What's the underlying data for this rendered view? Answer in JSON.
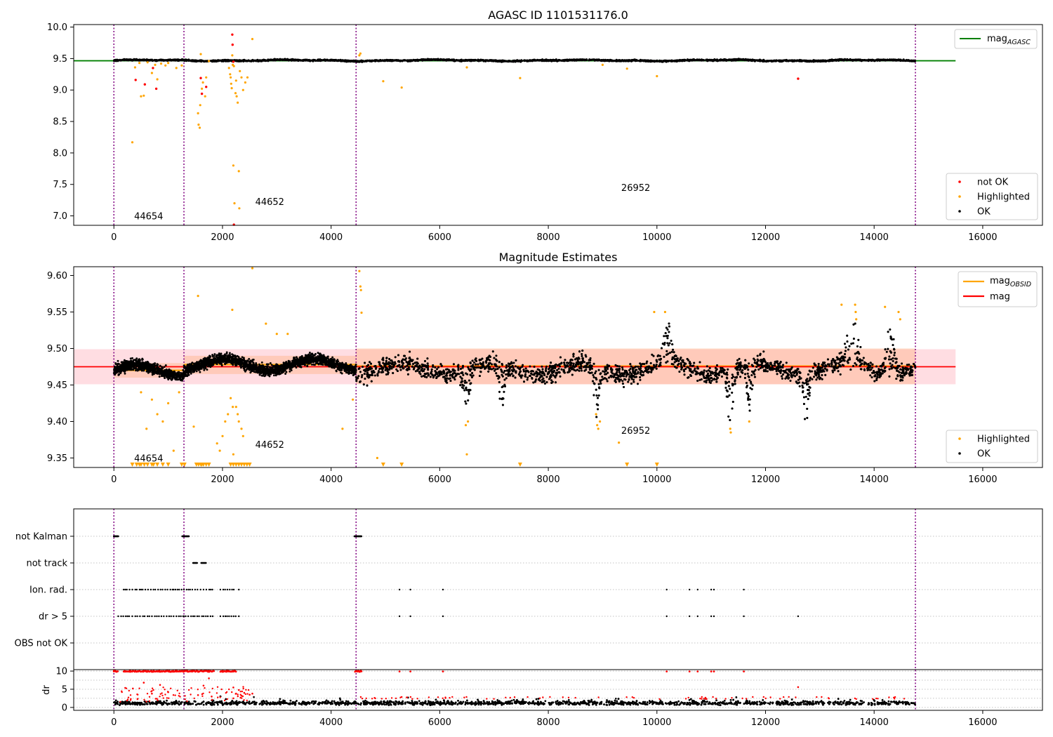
{
  "chart_data": [
    {
      "type": "scatter",
      "title": "AGASC ID 1101531176.0",
      "xlim": [
        -740,
        17100
      ],
      "ylim": [
        6.85,
        10.04
      ],
      "x_ticks": [
        0,
        2000,
        4000,
        6000,
        8000,
        10000,
        12000,
        14000,
        16000
      ],
      "y_ticks": [
        7.0,
        7.5,
        8.0,
        8.5,
        9.0,
        9.5,
        10.0
      ],
      "obsid_boundaries": [
        0,
        1290,
        4460,
        14760
      ],
      "obsid_labels": [
        {
          "text": "44654",
          "x": 640,
          "y": 6.99
        },
        {
          "text": "44652",
          "x": 2870,
          "y": 7.22
        },
        {
          "text": "26952",
          "x": 9610,
          "y": 7.44
        }
      ],
      "reference_line": {
        "name": "mag$_{AGASC}$",
        "label_main": "mag",
        "label_sub": "AGASC",
        "value": 9.465,
        "x_range": [
          -740,
          15500
        ],
        "color": "#008000"
      },
      "legend_lines_position": "upper right",
      "legend_points_position": "lower right",
      "series": [
        {
          "name": "not OK",
          "color": "#ff0000",
          "points": [
            [
              400,
              9.16
            ],
            [
              570,
              9.09
            ],
            [
              720,
              9.35
            ],
            [
              780,
              9.02
            ],
            [
              1600,
              9.19
            ],
            [
              1620,
              8.94
            ],
            [
              1700,
              9.05
            ],
            [
              2180,
              9.88
            ],
            [
              2185,
              9.72
            ],
            [
              2200,
              9.45
            ],
            [
              2210,
              6.86
            ],
            [
              12600,
              9.18
            ]
          ]
        },
        {
          "name": "Highlighted",
          "color": "#ffa500",
          "points": [
            [
              340,
              8.17
            ],
            [
              390,
              9.36
            ],
            [
              470,
              9.43
            ],
            [
              500,
              8.9
            ],
            [
              550,
              8.91
            ],
            [
              620,
              9.44
            ],
            [
              700,
              9.27
            ],
            [
              760,
              9.4
            ],
            [
              800,
              9.17
            ],
            [
              870,
              9.42
            ],
            [
              950,
              9.39
            ],
            [
              1000,
              9.43
            ],
            [
              1150,
              9.35
            ],
            [
              1250,
              9.39
            ],
            [
              1550,
              8.63
            ],
            [
              1560,
              8.45
            ],
            [
              1580,
              8.4
            ],
            [
              1590,
              8.76
            ],
            [
              1600,
              9.57
            ],
            [
              1620,
              9.02
            ],
            [
              1640,
              9.12
            ],
            [
              1680,
              8.9
            ],
            [
              1700,
              9.2
            ],
            [
              1750,
              9.46
            ],
            [
              2120,
              9.35
            ],
            [
              2140,
              9.25
            ],
            [
              2150,
              9.2
            ],
            [
              2160,
              9.1
            ],
            [
              2170,
              9.03
            ],
            [
              2180,
              9.55
            ],
            [
              2190,
              9.4
            ],
            [
              2200,
              7.8
            ],
            [
              2210,
              9.38
            ],
            [
              2220,
              7.2
            ],
            [
              2240,
              8.95
            ],
            [
              2250,
              9.15
            ],
            [
              2260,
              8.9
            ],
            [
              2280,
              8.8
            ],
            [
              2300,
              7.71
            ],
            [
              2310,
              7.12
            ],
            [
              2320,
              9.3
            ],
            [
              2350,
              9.2
            ],
            [
              2380,
              9.0
            ],
            [
              2420,
              9.12
            ],
            [
              2460,
              9.2
            ],
            [
              2550,
              9.81
            ],
            [
              4520,
              9.55
            ],
            [
              4540,
              9.58
            ],
            [
              4960,
              9.14
            ],
            [
              5300,
              9.04
            ],
            [
              6500,
              9.36
            ],
            [
              7480,
              9.19
            ],
            [
              9000,
              9.4
            ],
            [
              9450,
              9.34
            ],
            [
              10000,
              9.22
            ]
          ]
        },
        {
          "name": "OK",
          "color": "#000000",
          "band": {
            "x_segments": [
              [
                0,
                1290
              ],
              [
                1290,
                4460
              ],
              [
                4460,
                14760
              ]
            ],
            "mean": 9.47,
            "spread": 0.02
          },
          "summary": "dense OK points around mag 9.47 for x from 0 to 14760"
        }
      ]
    },
    {
      "type": "scatter",
      "title": "Magnitude Estimates",
      "xlim": [
        -740,
        17100
      ],
      "ylim": [
        9.337,
        9.612
      ],
      "x_ticks": [
        0,
        2000,
        4000,
        6000,
        8000,
        10000,
        12000,
        14000,
        16000
      ],
      "y_ticks": [
        9.35,
        9.4,
        9.45,
        9.5,
        9.55,
        9.6
      ],
      "obsid_boundaries": [
        0,
        1290,
        4460,
        14760
      ],
      "obsid_labels": [
        {
          "text": "44654",
          "x": 640,
          "y": 9.349
        },
        {
          "text": "44652",
          "x": 2870,
          "y": 9.368
        },
        {
          "text": "26952",
          "x": 9610,
          "y": 9.387
        }
      ],
      "mag_line": {
        "name": "mag",
        "value": 9.475,
        "band": [
          9.451,
          9.499
        ],
        "x_range": [
          -740,
          15500
        ],
        "color": "#ff0000",
        "band_color": "#ffdde2"
      },
      "mag_obsid_line": {
        "name": "mag$_{OBSID}$",
        "label_main": "mag",
        "label_sub": "OBSID",
        "color": "#ffa500",
        "segments": [
          {
            "x": [
              0,
              1290
            ],
            "value": 9.47,
            "band": [
              9.46,
              9.48
            ]
          },
          {
            "x": [
              1290,
              4460
            ],
            "value": 9.478,
            "band": [
              9.465,
              9.49
            ]
          },
          {
            "x": [
              4460,
              14760
            ],
            "value": 9.476,
            "band": [
              9.451,
              9.5
            ]
          }
        ]
      },
      "legend_lines_position": "upper right",
      "legend_points_position": "lower right",
      "series": [
        {
          "name": "Highlighted",
          "color": "#ffa500",
          "points": [
            [
              1550,
              9.572
            ],
            [
              1470,
              9.393
            ],
            [
              2180,
              9.553
            ],
            [
              2550,
              9.61
            ],
            [
              2800,
              9.534
            ],
            [
              3000,
              9.52
            ],
            [
              3200,
              9.52
            ],
            [
              4520,
              9.606
            ],
            [
              4540,
              9.585
            ],
            [
              4550,
              9.58
            ],
            [
              4560,
              9.549
            ],
            [
              4210,
              9.39
            ],
            [
              4400,
              9.43
            ],
            [
              2150,
              9.432
            ],
            [
              2190,
              9.42
            ],
            [
              2250,
              9.42
            ],
            [
              2280,
              9.41
            ],
            [
              2300,
              9.4
            ],
            [
              2350,
              9.39
            ],
            [
              2380,
              9.38
            ],
            [
              2100,
              9.41
            ],
            [
              2050,
              9.4
            ],
            [
              2000,
              9.38
            ],
            [
              1900,
              9.37
            ],
            [
              1950,
              9.36
            ],
            [
              2200,
              9.355
            ],
            [
              1000,
              9.425
            ],
            [
              800,
              9.41
            ],
            [
              700,
              9.43
            ],
            [
              600,
              9.39
            ],
            [
              500,
              9.44
            ],
            [
              900,
              9.4
            ],
            [
              1100,
              9.36
            ],
            [
              1200,
              9.44
            ],
            [
              4850,
              9.35
            ],
            [
              6500,
              9.355
            ],
            [
              6480,
              9.395
            ],
            [
              6520,
              9.4
            ],
            [
              8900,
              9.395
            ],
            [
              8920,
              9.39
            ],
            [
              8950,
              9.4
            ],
            [
              8880,
              9.41
            ],
            [
              9300,
              9.371
            ],
            [
              9950,
              9.55
            ],
            [
              10150,
              9.55
            ],
            [
              11350,
              9.39
            ],
            [
              11360,
              9.385
            ],
            [
              11700,
              9.4
            ],
            [
              13400,
              9.56
            ],
            [
              13650,
              9.56
            ],
            [
              13660,
              9.55
            ],
            [
              13670,
              9.54
            ],
            [
              14200,
              9.557
            ],
            [
              14450,
              9.55
            ],
            [
              14480,
              9.54
            ]
          ],
          "clipped_low_x": [
            340,
            420,
            470,
            500,
            560,
            620,
            700,
            730,
            800,
            900,
            1000,
            1250,
            1300,
            1520,
            1560,
            1600,
            1620,
            1650,
            1700,
            1750,
            2150,
            2200,
            2250,
            2300,
            2350,
            2400,
            2450,
            2500,
            4960,
            5300,
            7480,
            9450,
            10000
          ]
        },
        {
          "name": "OK",
          "color": "#000000",
          "segments": [
            {
              "x": [
                0,
                1290
              ],
              "mean": 9.47,
              "spread": 0.012
            },
            {
              "x": [
                1290,
                4460
              ],
              "mean": 9.478,
              "spread": 0.012
            },
            {
              "x": [
                4460,
                14760
              ],
              "mean": 9.472,
              "spread": 0.02
            }
          ],
          "dips": [
            [
              6500,
              9.41
            ],
            [
              7150,
              9.415
            ],
            [
              8900,
              9.405
            ],
            [
              11350,
              9.395
            ],
            [
              11700,
              9.405
            ],
            [
              12750,
              9.41
            ]
          ],
          "peaks": [
            [
              10200,
              9.525
            ],
            [
              13600,
              9.535
            ],
            [
              14300,
              9.53
            ]
          ],
          "summary": "dense OK points around mag 9.47 for x from 0 to 14760"
        }
      ]
    },
    {
      "type": "scatter",
      "title": "",
      "xlim": [
        -740,
        17100
      ],
      "x_ticks": [
        0,
        2000,
        4000,
        6000,
        8000,
        10000,
        12000,
        14000,
        16000
      ],
      "obsid_boundaries": [
        0,
        1290,
        4460,
        14760
      ],
      "flag_rows": [
        "not Kalman",
        "not track",
        "Ion. rad.",
        "dr > 5",
        "OBS not OK"
      ],
      "flags": {
        "not Kalman": [
          [
            0,
            80
          ],
          [
            1260,
            1380
          ],
          [
            4430,
            4560
          ]
        ],
        "not track": [
          [
            1460,
            1540
          ],
          [
            1610,
            1700
          ]
        ],
        "Ion. rad.": {
          "clusters": [
            [
              180,
              1100
            ],
            [
              1100,
              1280
            ],
            [
              1290,
              1850
            ],
            [
              1960,
              2250
            ]
          ],
          "points": [
            2300,
            5260,
            5460,
            6060,
            10180,
            10600,
            10750,
            11000,
            11050,
            11600
          ]
        },
        "dr > 5": {
          "clusters": [
            [
              80,
              1100
            ],
            [
              1100,
              1280
            ],
            [
              1290,
              1850
            ],
            [
              1960,
              2250
            ]
          ],
          "points": [
            2300,
            5260,
            5460,
            6060,
            10180,
            10600,
            10750,
            11000,
            11050,
            11600,
            12600
          ]
        },
        "OBS not OK": []
      },
      "dr_panel": {
        "ylabel": "dr",
        "y_ticks": [
          0,
          5,
          10
        ],
        "ylim": [
          -0.8,
          10.4
        ],
        "ok_color": "#000000",
        "bad_color": "#ff0000",
        "ok_summary": "OK dr values mostly between 0 and 2.5",
        "high_points": [
          [
            0,
            9.9
          ],
          [
            50,
            9.8
          ],
          [
            200,
            9.9
          ],
          [
            300,
            9.8
          ],
          [
            450,
            9.9
          ],
          [
            600,
            9.9
          ],
          [
            700,
            9.8
          ],
          [
            800,
            9.9
          ],
          [
            950,
            9.9
          ],
          [
            1050,
            9.8
          ],
          [
            1150,
            9.9
          ],
          [
            1280,
            9.8
          ],
          [
            1350,
            9.9
          ],
          [
            1450,
            9.9
          ],
          [
            1550,
            9.8
          ],
          [
            1650,
            9.9
          ],
          [
            1750,
            9.9
          ],
          [
            2000,
            9.8
          ],
          [
            2100,
            9.9
          ],
          [
            2200,
            9.9
          ],
          [
            4480,
            9.9
          ],
          [
            4520,
            9.8
          ],
          [
            5260,
            9.9
          ],
          [
            5460,
            9.9
          ],
          [
            6060,
            9.9
          ],
          [
            10180,
            9.9
          ],
          [
            10600,
            9.9
          ],
          [
            10750,
            9.9
          ],
          [
            11000,
            9.9
          ],
          [
            11050,
            9.9
          ],
          [
            11600,
            9.9
          ]
        ],
        "mid_points": [
          [
            350,
            5.2
          ],
          [
            550,
            6.8
          ],
          [
            700,
            3.8
          ],
          [
            850,
            6.2
          ],
          [
            1000,
            4.2
          ],
          [
            1550,
            3.4
          ],
          [
            1650,
            6.0
          ],
          [
            1750,
            8.0
          ],
          [
            1800,
            3.0
          ],
          [
            2200,
            5.5
          ],
          [
            2250,
            3.8
          ],
          [
            2300,
            4.8
          ],
          [
            2350,
            3.2
          ],
          [
            2400,
            4.0
          ],
          [
            2500,
            3.5
          ],
          [
            2550,
            3.8
          ],
          [
            2200,
            2.5
          ],
          [
            12600,
            5.6
          ]
        ]
      }
    }
  ]
}
